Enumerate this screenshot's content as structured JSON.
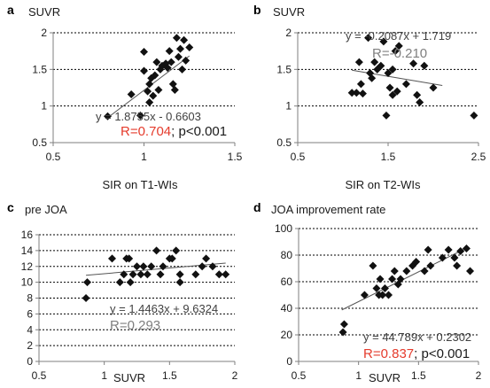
{
  "chart_data": [
    {
      "id": "a",
      "type": "scatter",
      "panel_letter": "a",
      "title": "SUVR",
      "xlabel": "SIR on T1-WIs",
      "ylabel": "",
      "xlim": [
        0.5,
        1.5
      ],
      "ylim": [
        0.5,
        2
      ],
      "xticks": [
        "0.5",
        "1",
        "1.5"
      ],
      "yticks": [
        "0.5",
        "1",
        "1.5",
        "2"
      ],
      "grid": true,
      "trendline": {
        "slope": 1.8755,
        "intercept": -0.6603,
        "x_start": 0.8,
        "x_end": 1.25
      },
      "equation": "y = 1.8755x - 0.6603",
      "r_text": "R=0.704",
      "p_text": "; p<0.001",
      "r_color": "#e53b2c",
      "points": [
        [
          0.8,
          0.86
        ],
        [
          0.93,
          1.16
        ],
        [
          0.98,
          0.87
        ],
        [
          1.0,
          1.74
        ],
        [
          1.0,
          1.48
        ],
        [
          1.02,
          1.2
        ],
        [
          1.03,
          1.3
        ],
        [
          1.03,
          1.05
        ],
        [
          1.04,
          1.38
        ],
        [
          1.05,
          1.14
        ],
        [
          1.06,
          1.42
        ],
        [
          1.07,
          1.6
        ],
        [
          1.08,
          1.22
        ],
        [
          1.09,
          1.5
        ],
        [
          1.1,
          1.55
        ],
        [
          1.12,
          1.58
        ],
        [
          1.13,
          1.52
        ],
        [
          1.14,
          1.75
        ],
        [
          1.15,
          1.6
        ],
        [
          1.16,
          1.3
        ],
        [
          1.18,
          1.93
        ],
        [
          1.19,
          1.67
        ],
        [
          1.2,
          1.78
        ],
        [
          1.22,
          1.9
        ],
        [
          1.23,
          1.62
        ],
        [
          1.25,
          1.8
        ],
        [
          1.17,
          1.22
        ],
        [
          1.21,
          1.5
        ]
      ]
    },
    {
      "id": "b",
      "type": "scatter",
      "panel_letter": "b",
      "title": "SUVR",
      "xlabel": "SIR on T2-WIs",
      "ylabel": "",
      "xlim": [
        0.5,
        2.5
      ],
      "ylim": [
        0.5,
        2
      ],
      "xticks": [
        "0.5",
        "1.5",
        "2.5"
      ],
      "yticks": [
        "0.5",
        "1",
        "1.5",
        "2"
      ],
      "grid": true,
      "trendline": {
        "slope": -0.2087,
        "intercept": 1.719,
        "x_start": 1.1,
        "x_end": 2.1
      },
      "equation": "y = -0.2087x + 1.719",
      "r_text": "R=-0.210",
      "p_text": "",
      "r_color": "#7f7f7f",
      "points": [
        [
          1.1,
          1.18
        ],
        [
          1.15,
          1.18
        ],
        [
          1.18,
          1.6
        ],
        [
          1.2,
          1.3
        ],
        [
          1.22,
          1.17
        ],
        [
          1.28,
          1.93
        ],
        [
          1.3,
          1.45
        ],
        [
          1.32,
          1.38
        ],
        [
          1.35,
          1.6
        ],
        [
          1.38,
          1.5
        ],
        [
          1.42,
          1.55
        ],
        [
          1.45,
          1.88
        ],
        [
          1.48,
          0.87
        ],
        [
          1.5,
          1.45
        ],
        [
          1.52,
          1.25
        ],
        [
          1.55,
          1.5
        ],
        [
          1.58,
          1.75
        ],
        [
          1.6,
          1.2
        ],
        [
          1.62,
          1.82
        ],
        [
          1.7,
          1.3
        ],
        [
          1.78,
          1.58
        ],
        [
          1.82,
          1.15
        ],
        [
          1.85,
          1.05
        ],
        [
          1.9,
          1.55
        ],
        [
          2.0,
          1.25
        ],
        [
          2.45,
          0.87
        ],
        [
          1.55,
          1.15
        ]
      ]
    },
    {
      "id": "c",
      "type": "scatter",
      "panel_letter": "c",
      "title": "pre JOA",
      "xlabel": "SUVR",
      "ylabel": "",
      "xlim": [
        0.5,
        2
      ],
      "ylim": [
        0,
        16
      ],
      "xticks": [
        "0.5",
        "1",
        "1.5",
        "2"
      ],
      "yticks": [
        "0",
        "2",
        "4",
        "6",
        "8",
        "10",
        "12",
        "14",
        "16"
      ],
      "grid": true,
      "trendline": {
        "slope": 1.4463,
        "intercept": 9.6324,
        "x_start": 0.86,
        "x_end": 1.93
      },
      "equation": "y = 1.4463x + 9.6324",
      "r_text": "R=0.293",
      "p_text": "",
      "r_color": "#7f7f7f",
      "points": [
        [
          0.86,
          8
        ],
        [
          0.87,
          10
        ],
        [
          1.06,
          13
        ],
        [
          1.12,
          10
        ],
        [
          1.15,
          11
        ],
        [
          1.17,
          13
        ],
        [
          1.19,
          13
        ],
        [
          1.2,
          10
        ],
        [
          1.22,
          11
        ],
        [
          1.25,
          12
        ],
        [
          1.28,
          11
        ],
        [
          1.3,
          12
        ],
        [
          1.33,
          11
        ],
        [
          1.36,
          12
        ],
        [
          1.4,
          14
        ],
        [
          1.43,
          11
        ],
        [
          1.45,
          12
        ],
        [
          1.5,
          13
        ],
        [
          1.52,
          13
        ],
        [
          1.55,
          14
        ],
        [
          1.58,
          10
        ],
        [
          1.58,
          11
        ],
        [
          1.7,
          11
        ],
        [
          1.75,
          12
        ],
        [
          1.78,
          13
        ],
        [
          1.83,
          12
        ],
        [
          1.88,
          11
        ],
        [
          1.93,
          11
        ]
      ]
    },
    {
      "id": "d",
      "type": "scatter",
      "panel_letter": "d",
      "title": "JOA improvement rate",
      "xlabel": "SUVR",
      "ylabel": "",
      "xlim": [
        0.5,
        2
      ],
      "ylim": [
        0,
        100
      ],
      "xticks": [
        "0.5",
        "1",
        "1.5",
        "2"
      ],
      "yticks": [
        "0",
        "20",
        "40",
        "60",
        "80",
        "100"
      ],
      "grid": true,
      "trendline": {
        "slope": 44.789,
        "intercept": 0.2302,
        "x_start": 0.86,
        "x_end": 1.9
      },
      "equation": "y = 44.789x + 0.2302",
      "r_text": "R=0.837",
      "p_text": "; p<0.001",
      "r_color": "#e53b2c",
      "points": [
        [
          0.87,
          22
        ],
        [
          0.88,
          28
        ],
        [
          1.05,
          50
        ],
        [
          1.12,
          72
        ],
        [
          1.15,
          55
        ],
        [
          1.17,
          50
        ],
        [
          1.18,
          62
        ],
        [
          1.2,
          50
        ],
        [
          1.22,
          55
        ],
        [
          1.25,
          50
        ],
        [
          1.28,
          62
        ],
        [
          1.3,
          68
        ],
        [
          1.33,
          58
        ],
        [
          1.35,
          62
        ],
        [
          1.4,
          68
        ],
        [
          1.45,
          72
        ],
        [
          1.48,
          75
        ],
        [
          1.55,
          68
        ],
        [
          1.58,
          84
        ],
        [
          1.6,
          72
        ],
        [
          1.7,
          78
        ],
        [
          1.75,
          84
        ],
        [
          1.8,
          78
        ],
        [
          1.82,
          72
        ],
        [
          1.85,
          83
        ],
        [
          1.9,
          85
        ],
        [
          1.93,
          68
        ]
      ]
    }
  ],
  "colors": {
    "marker": "#111111",
    "trendline": "#555555",
    "grid": "#000000",
    "axis": "#7f7f7f"
  }
}
